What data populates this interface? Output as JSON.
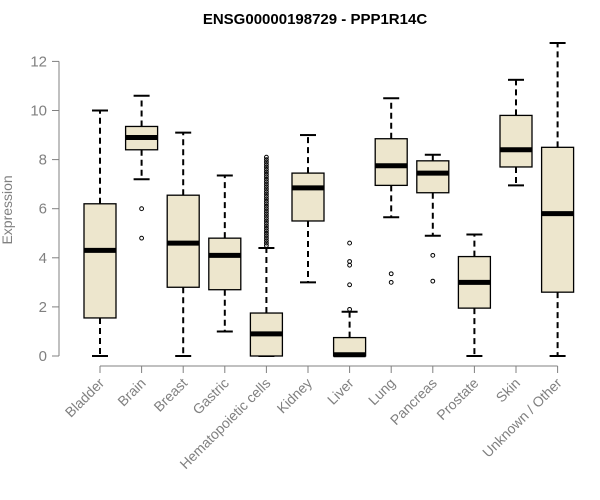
{
  "chart_data": {
    "type": "box",
    "title": "ENSG00000198729 - PPP1R14C",
    "xlabel": "",
    "ylabel": "Expression",
    "ylim": [
      0,
      12.5
    ],
    "yticks": [
      0,
      2,
      4,
      6,
      8,
      10,
      12
    ],
    "colors": {
      "box_fill": "#ede6cd",
      "stroke": "#000000",
      "axis": "#808080",
      "text": "#808080"
    },
    "categories": [
      "Bladder",
      "Brain",
      "Breast",
      "Gastric",
      "Hematopoietic cells",
      "Kidney",
      "Liver",
      "Lung",
      "Pancreas",
      "Prostate",
      "Skin",
      "Unknown / Other"
    ],
    "boxes": [
      {
        "name": "Bladder",
        "whisker_low": 0,
        "q1": 1.55,
        "median": 4.3,
        "q3": 6.2,
        "whisker_high": 10.0,
        "outliers": []
      },
      {
        "name": "Brain",
        "whisker_low": 7.2,
        "q1": 8.4,
        "median": 8.9,
        "q3": 9.35,
        "whisker_high": 10.6,
        "outliers": [
          6.0,
          4.8
        ]
      },
      {
        "name": "Breast",
        "whisker_low": 0,
        "q1": 2.8,
        "median": 4.6,
        "q3": 6.55,
        "whisker_high": 9.1,
        "outliers": []
      },
      {
        "name": "Gastric",
        "whisker_low": 1.0,
        "q1": 2.7,
        "median": 4.1,
        "q3": 4.8,
        "whisker_high": 7.35,
        "outliers": []
      },
      {
        "name": "Hematopoietic cells",
        "whisker_low": 0,
        "q1": 0,
        "median": 0.9,
        "q3": 1.75,
        "whisker_high": 4.4,
        "outliers": [
          4.5,
          4.6,
          4.7,
          4.8,
          4.9,
          5.0,
          5.1,
          5.2,
          5.3,
          5.4,
          5.5,
          5.6,
          5.7,
          5.8,
          5.9,
          6.0,
          6.1,
          6.2,
          6.3,
          6.4,
          6.5,
          6.6,
          6.7,
          6.8,
          6.9,
          7.0,
          7.1,
          7.2,
          7.3,
          7.4,
          7.5,
          7.6,
          7.7,
          7.8,
          7.9,
          8.0,
          8.1
        ]
      },
      {
        "name": "Kidney",
        "whisker_low": 3.0,
        "q1": 5.5,
        "median": 6.85,
        "q3": 7.45,
        "whisker_high": 9.0,
        "outliers": []
      },
      {
        "name": "Liver",
        "whisker_low": 0,
        "q1": 0,
        "median": 0.05,
        "q3": 0.75,
        "whisker_high": 1.8,
        "outliers": [
          1.9,
          2.9,
          3.7,
          3.85,
          4.6
        ]
      },
      {
        "name": "Lung",
        "whisker_low": 5.65,
        "q1": 6.95,
        "median": 7.75,
        "q3": 8.85,
        "whisker_high": 10.5,
        "outliers": [
          3.35,
          3.0
        ]
      },
      {
        "name": "Pancreas",
        "whisker_low": 4.9,
        "q1": 6.65,
        "median": 7.45,
        "q3": 7.95,
        "whisker_high": 8.2,
        "outliers": [
          4.1,
          3.05
        ]
      },
      {
        "name": "Prostate",
        "whisker_low": 0,
        "q1": 1.95,
        "median": 3.0,
        "q3": 4.05,
        "whisker_high": 4.95,
        "outliers": []
      },
      {
        "name": "Skin",
        "whisker_low": 6.95,
        "q1": 7.7,
        "median": 8.4,
        "q3": 9.8,
        "whisker_high": 11.25,
        "outliers": []
      },
      {
        "name": "Unknown / Other",
        "whisker_low": 0,
        "q1": 2.6,
        "median": 5.8,
        "q3": 8.5,
        "whisker_high": 12.75,
        "outliers": []
      }
    ]
  }
}
